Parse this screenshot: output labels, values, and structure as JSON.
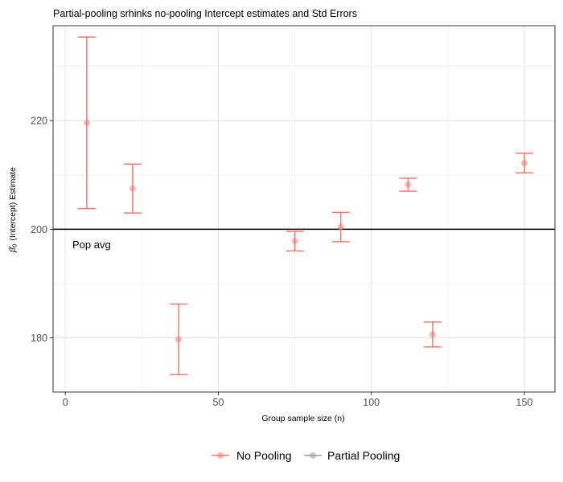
{
  "chart_data": {
    "type": "scatter",
    "title": "Partial-pooling srhinks no-pooling Intercept estimates and Std Errors",
    "xlabel": "Group sample size (n)",
    "ylabel_symbol": "β̂₀",
    "ylabel": "(Intercept) Estimate",
    "xlim": [
      -4,
      160
    ],
    "ylim": [
      170,
      237.5
    ],
    "x_ticks": [
      "0",
      "50",
      "100",
      "150"
    ],
    "x_tick_values": [
      0,
      50,
      100,
      150
    ],
    "y_ticks": [
      "180",
      "200",
      "220"
    ],
    "y_tick_values": [
      180,
      200,
      220
    ],
    "grid": true,
    "reference_line": {
      "y": 200,
      "label": "Pop avg",
      "color": "#000000"
    },
    "legend_position": "bottom",
    "series": [
      {
        "name": "No Pooling",
        "color": "#f8766d",
        "points": [
          {
            "x": 7,
            "y": 219.6,
            "ymin": 203.8,
            "ymax": 235.4
          },
          {
            "x": 22,
            "y": 207.5,
            "ymin": 203.0,
            "ymax": 212.0
          },
          {
            "x": 37,
            "y": 179.7,
            "ymin": 173.2,
            "ymax": 186.2
          },
          {
            "x": 75,
            "y": 197.8,
            "ymin": 196.0,
            "ymax": 199.6
          },
          {
            "x": 90,
            "y": 200.4,
            "ymin": 197.7,
            "ymax": 203.1
          },
          {
            "x": 112,
            "y": 208.2,
            "ymin": 207.0,
            "ymax": 209.4
          },
          {
            "x": 120,
            "y": 180.6,
            "ymin": 178.3,
            "ymax": 182.9
          },
          {
            "x": 150,
            "y": 212.2,
            "ymin": 210.4,
            "ymax": 214.0
          }
        ]
      },
      {
        "name": "Partial Pooling",
        "color": "#999999",
        "points": []
      }
    ]
  }
}
